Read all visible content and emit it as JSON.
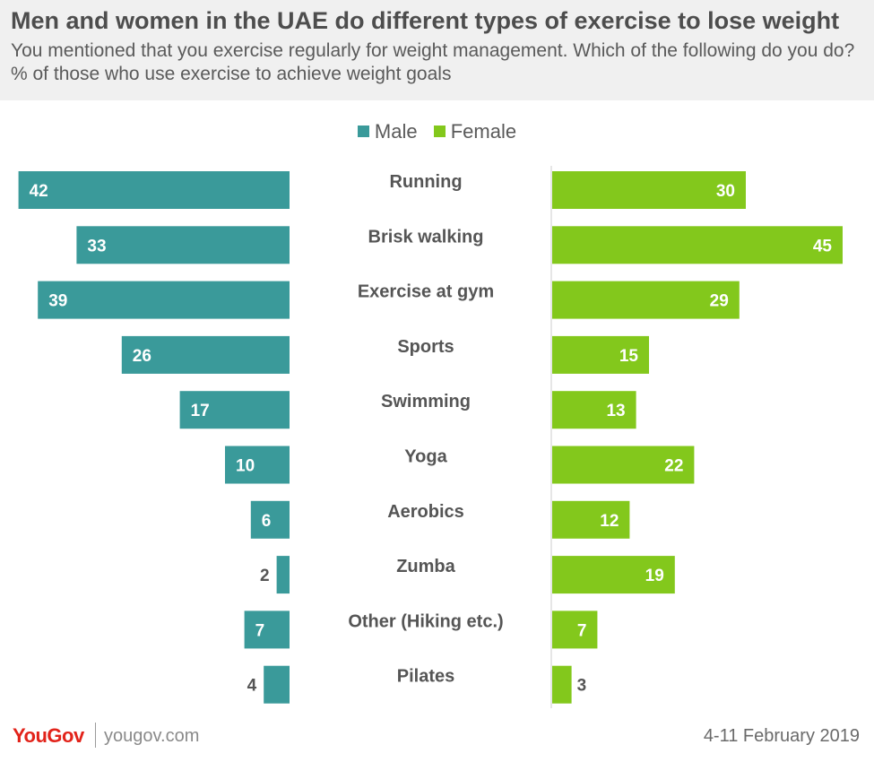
{
  "header": {
    "title": "Men and women in the UAE do different types of exercise to lose weight",
    "subtitle": "You mentioned that you exercise regularly for weight management. Which of the following do you do? % of those who use exercise to achieve weight goals"
  },
  "footer": {
    "logo": "YouGov",
    "url": "yougov.com",
    "date": "4-11 February 2019"
  },
  "colors": {
    "male": "#3a9a9a",
    "female": "#83c81c",
    "category_text": "#555555"
  },
  "chart_data": {
    "type": "bar",
    "orientation": "horizontal-diverging",
    "categories": [
      "Running",
      "Brisk walking",
      "Exercise at gym",
      "Sports",
      "Swimming",
      "Yoga",
      "Aerobics",
      "Zumba",
      "Other (Hiking etc.)",
      "Pilates"
    ],
    "series": [
      {
        "name": "Male",
        "values": [
          42,
          33,
          39,
          26,
          17,
          10,
          6,
          2,
          7,
          4
        ]
      },
      {
        "name": "Female",
        "values": [
          30,
          45,
          29,
          15,
          13,
          22,
          12,
          19,
          7,
          3
        ]
      }
    ],
    "legend_position": "top-center",
    "grid": false
  }
}
